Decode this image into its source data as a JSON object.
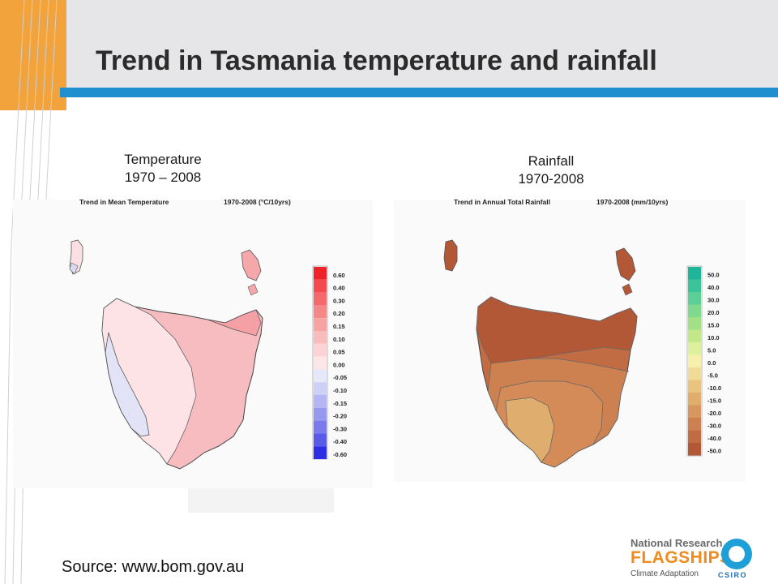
{
  "slide": {
    "title": "Trend in Tasmania temperature and rainfall",
    "source": "Source: www.bom.gov.au"
  },
  "captions": {
    "temperature_line1": "Temperature",
    "temperature_line2": "1970 – 2008",
    "rainfall_line1": "Rainfall",
    "rainfall_line2": "1970-2008"
  },
  "temperature_map": {
    "title": "Trend in Mean Temperature",
    "period": "1970-2008 (°C/10yrs)",
    "legend": [
      {
        "label": "0.60",
        "color": "#f0222a"
      },
      {
        "label": "0.40",
        "color": "#f24a4e"
      },
      {
        "label": "0.30",
        "color": "#f36a6c"
      },
      {
        "label": "0.20",
        "color": "#f58788"
      },
      {
        "label": "0.15",
        "color": "#f7a3a3"
      },
      {
        "label": "0.10",
        "color": "#f9bcbd"
      },
      {
        "label": "0.05",
        "color": "#fbd3d4"
      },
      {
        "label": "0.00",
        "color": "#fde6e7"
      },
      {
        "label": "-0.05",
        "color": "#e6e7f8"
      },
      {
        "label": "-0.10",
        "color": "#cfd0f5"
      },
      {
        "label": "-0.15",
        "color": "#b4b5f2"
      },
      {
        "label": "-0.20",
        "color": "#9798ef"
      },
      {
        "label": "-0.30",
        "color": "#7a7aec"
      },
      {
        "label": "-0.40",
        "color": "#5a5ae9"
      },
      {
        "label": "-0.60",
        "color": "#2d2de6"
      }
    ]
  },
  "rainfall_map": {
    "title": "Trend in Annual Total Rainfall",
    "period": "1970-2008 (mm/10yrs)",
    "legend": [
      {
        "label": "50.0",
        "color": "#1fb59a"
      },
      {
        "label": "40.0",
        "color": "#3cc39a"
      },
      {
        "label": "30.0",
        "color": "#5ccf98"
      },
      {
        "label": "20.0",
        "color": "#7fd98f"
      },
      {
        "label": "15.0",
        "color": "#a2e086"
      },
      {
        "label": "10.0",
        "color": "#c3e88a"
      },
      {
        "label": "5.0",
        "color": "#dff09c"
      },
      {
        "label": "0.0",
        "color": "#f6f0ac"
      },
      {
        "label": "-5.0",
        "color": "#f1dc97"
      },
      {
        "label": "-10.0",
        "color": "#e9c47e"
      },
      {
        "label": "-15.0",
        "color": "#e0ad6c"
      },
      {
        "label": "-20.0",
        "color": "#d7975e"
      },
      {
        "label": "-30.0",
        "color": "#cd8150"
      },
      {
        "label": "-40.0",
        "color": "#c26c43"
      },
      {
        "label": "-50.0",
        "color": "#b35837"
      }
    ]
  },
  "logo": {
    "line1": "National Research",
    "line2": "FLAGSHIPS",
    "line3": "Climate Adaptation",
    "mark": "CSIRO"
  }
}
